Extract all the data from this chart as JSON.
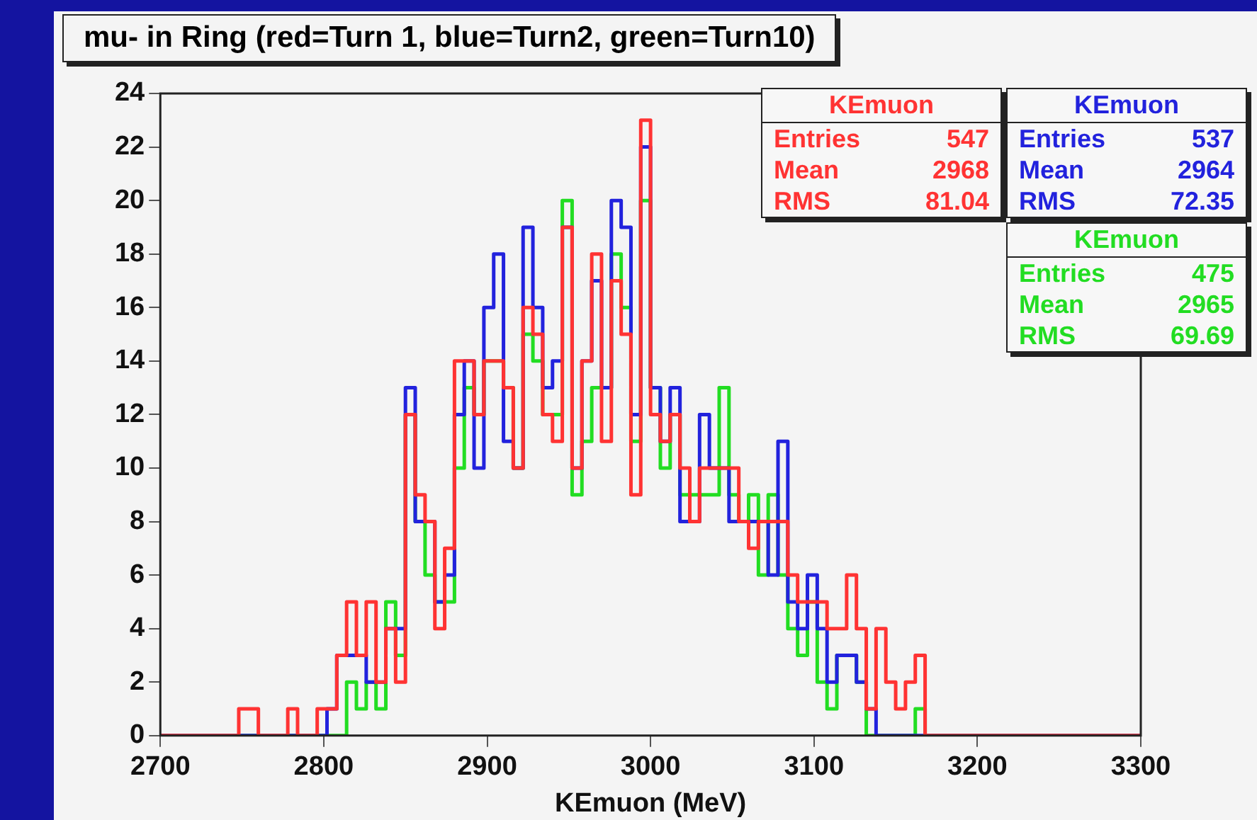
{
  "chart_data": {
    "type": "histogram",
    "title": "mu- in Ring (red=Turn 1, blue=Turn2, green=Turn10)",
    "xlabel": "KEmuon (MeV)",
    "bins": [
      2700,
      2706,
      2712,
      2718,
      2724,
      2730,
      2736,
      2742,
      2748,
      2754,
      2760,
      2766,
      2772,
      2778,
      2784,
      2790,
      2796,
      2802,
      2808,
      2814,
      2820,
      2826,
      2832,
      2838,
      2844,
      2850,
      2856,
      2862,
      2868,
      2874,
      2880,
      2886,
      2892,
      2898,
      2904,
      2910,
      2916,
      2922,
      2928,
      2934,
      2940,
      2946,
      2952,
      2958,
      2964,
      2970,
      2976,
      2982,
      2988,
      2994,
      3000,
      3006,
      3012,
      3018,
      3024,
      3030,
      3036,
      3042,
      3048,
      3054,
      3060,
      3066,
      3072,
      3078,
      3084,
      3090,
      3096,
      3102,
      3108,
      3114,
      3120,
      3126,
      3132,
      3138,
      3144,
      3150,
      3156,
      3162,
      3168,
      3174,
      3180,
      3186,
      3192,
      3198,
      3204,
      3210,
      3216,
      3222,
      3228,
      3234,
      3240,
      3246,
      3252,
      3258,
      3264,
      3270,
      3276,
      3282,
      3288,
      3294,
      3300
    ],
    "series": [
      {
        "name": "KEmuon",
        "color": "#ff3333",
        "values": [
          0,
          0,
          0,
          0,
          0,
          0,
          0,
          0,
          1,
          1,
          0,
          0,
          0,
          1,
          0,
          0,
          1,
          1,
          3,
          5,
          3,
          5,
          2,
          4,
          2,
          12,
          9,
          8,
          4,
          7,
          14,
          14,
          12,
          14,
          14,
          13,
          10,
          16,
          15,
          12,
          11,
          19,
          10,
          14,
          18,
          11,
          17,
          15,
          9,
          23,
          12,
          11,
          12,
          10,
          8,
          10,
          10,
          10,
          10,
          8,
          7,
          8,
          8,
          8,
          6,
          5,
          5,
          5,
          4,
          4,
          6,
          4,
          1,
          4,
          2,
          1,
          2,
          3,
          0,
          0,
          0,
          0,
          0,
          0,
          0,
          0,
          0,
          0,
          0,
          0,
          0,
          0,
          0,
          0,
          0,
          0,
          0,
          0,
          0,
          0
        ]
      },
      {
        "name": "KEmuon",
        "color": "#2222dd",
        "values": [
          0,
          0,
          0,
          0,
          0,
          0,
          0,
          0,
          0,
          0,
          0,
          0,
          0,
          0,
          0,
          0,
          0,
          1,
          3,
          3,
          3,
          2,
          2,
          4,
          4,
          13,
          8,
          8,
          5,
          6,
          12,
          14,
          10,
          16,
          18,
          11,
          10,
          19,
          16,
          13,
          14,
          19,
          10,
          14,
          17,
          13,
          20,
          19,
          12,
          22,
          13,
          11,
          13,
          8,
          8,
          12,
          10,
          10,
          8,
          8,
          8,
          8,
          6,
          11,
          5,
          4,
          6,
          4,
          2,
          3,
          3,
          2,
          1,
          0,
          0,
          0,
          0,
          0,
          0,
          0,
          0,
          0,
          0,
          0,
          0,
          0,
          0,
          0,
          0,
          0,
          0,
          0,
          0,
          0,
          0,
          0,
          0,
          0,
          0,
          0
        ]
      },
      {
        "name": "KEmuon",
        "color": "#22dd22",
        "values": [
          0,
          0,
          0,
          0,
          0,
          0,
          0,
          0,
          0,
          0,
          0,
          0,
          0,
          0,
          0,
          0,
          0,
          0,
          0,
          2,
          1,
          2,
          1,
          5,
          3,
          12,
          8,
          6,
          5,
          5,
          10,
          13,
          12,
          14,
          14,
          13,
          10,
          15,
          14,
          12,
          12,
          20,
          9,
          11,
          13,
          13,
          18,
          16,
          11,
          20,
          13,
          10,
          12,
          9,
          9,
          9,
          9,
          13,
          9,
          8,
          9,
          6,
          9,
          6,
          4,
          3,
          5,
          2,
          1,
          3,
          3,
          2,
          0,
          0,
          0,
          0,
          0,
          1,
          0,
          0,
          0,
          0,
          0,
          0,
          0,
          0,
          0,
          0,
          0,
          0,
          0,
          0,
          0,
          0,
          0,
          0,
          0,
          0,
          0,
          0
        ]
      }
    ],
    "annotations": [
      "Entries 547",
      "Mean 2968",
      "RMS 81.04",
      "Entries 537",
      "Mean 2964",
      "RMS 72.35",
      "Entries 475",
      "Mean 2965",
      "RMS 69.69"
    ],
    "xlim": [
      2700,
      3300
    ],
    "xticks": [
      2700,
      2800,
      2900,
      3000,
      3100,
      3200,
      3300
    ],
    "ylim": [
      0,
      24
    ],
    "yticks": [
      0,
      2,
      4,
      6,
      8,
      10,
      12,
      14,
      16,
      18,
      20,
      22,
      24
    ],
    "legend": "top right"
  }
}
